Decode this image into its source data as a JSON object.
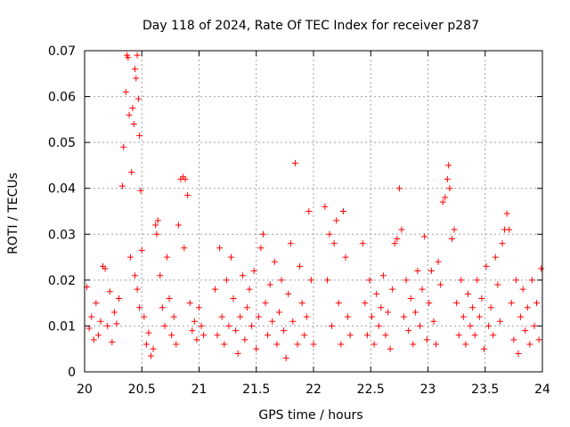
{
  "chart_data": {
    "type": "scatter",
    "title": "Day 118 of 2024, Rate Of TEC Index for receiver p287",
    "xlabel": "GPS time / hours",
    "ylabel": "ROTI / TECUs",
    "xlim": [
      20,
      24
    ],
    "ylim": [
      0,
      0.07
    ],
    "grid": true,
    "marker": "+",
    "color": "#ff0000",
    "x_ticks": [
      20,
      20.5,
      21,
      21.5,
      22,
      22.5,
      23,
      23.5,
      24
    ],
    "x_tick_labels": [
      "20",
      "20.5",
      "21",
      "21.5",
      "22",
      "22.5",
      "23",
      "23.5",
      "24"
    ],
    "y_ticks": [
      0,
      0.01,
      0.02,
      0.03,
      0.04,
      0.05,
      0.06,
      0.07
    ],
    "y_tick_labels": [
      "0",
      "0.01",
      "0.02",
      "0.03",
      "0.04",
      "0.05",
      "0.06",
      "0.07"
    ],
    "series": [
      {
        "name": "ROTI",
        "points": [
          [
            20.02,
            0.0185
          ],
          [
            20.04,
            0.0095
          ],
          [
            20.06,
            0.012
          ],
          [
            20.08,
            0.007
          ],
          [
            20.1,
            0.015
          ],
          [
            20.12,
            0.008
          ],
          [
            20.14,
            0.011
          ],
          [
            20.16,
            0.023
          ],
          [
            20.18,
            0.0225
          ],
          [
            20.2,
            0.01
          ],
          [
            20.22,
            0.0175
          ],
          [
            20.24,
            0.0065
          ],
          [
            20.26,
            0.013
          ],
          [
            20.28,
            0.0105
          ],
          [
            20.3,
            0.016
          ],
          [
            20.33,
            0.0405
          ],
          [
            20.34,
            0.049
          ],
          [
            20.36,
            0.061
          ],
          [
            20.37,
            0.069
          ],
          [
            20.38,
            0.0685
          ],
          [
            20.39,
            0.056
          ],
          [
            20.41,
            0.0435
          ],
          [
            20.42,
            0.0575
          ],
          [
            20.43,
            0.054
          ],
          [
            20.44,
            0.066
          ],
          [
            20.45,
            0.064
          ],
          [
            20.46,
            0.069
          ],
          [
            20.47,
            0.0595
          ],
          [
            20.48,
            0.0515
          ],
          [
            20.49,
            0.0395
          ],
          [
            20.4,
            0.025
          ],
          [
            20.44,
            0.021
          ],
          [
            20.46,
            0.018
          ],
          [
            20.48,
            0.014
          ],
          [
            20.5,
            0.0265
          ],
          [
            20.52,
            0.012
          ],
          [
            20.54,
            0.006
          ],
          [
            20.56,
            0.0085
          ],
          [
            20.58,
            0.0035
          ],
          [
            20.6,
            0.005
          ],
          [
            20.62,
            0.032
          ],
          [
            20.64,
            0.033
          ],
          [
            20.63,
            0.03
          ],
          [
            20.66,
            0.021
          ],
          [
            20.68,
            0.014
          ],
          [
            20.7,
            0.01
          ],
          [
            20.72,
            0.025
          ],
          [
            20.74,
            0.016
          ],
          [
            20.76,
            0.008
          ],
          [
            20.78,
            0.012
          ],
          [
            20.8,
            0.006
          ],
          [
            20.82,
            0.032
          ],
          [
            20.84,
            0.042
          ],
          [
            20.86,
            0.0425
          ],
          [
            20.88,
            0.042
          ],
          [
            20.9,
            0.0385
          ],
          [
            20.87,
            0.027
          ],
          [
            20.92,
            0.015
          ],
          [
            20.94,
            0.009
          ],
          [
            20.96,
            0.011
          ],
          [
            20.98,
            0.007
          ],
          [
            21.0,
            0.014
          ],
          [
            21.02,
            0.01
          ],
          [
            21.04,
            0.008
          ],
          [
            21.14,
            0.018
          ],
          [
            21.16,
            0.008
          ],
          [
            21.18,
            0.027
          ],
          [
            21.2,
            0.012
          ],
          [
            21.22,
            0.006
          ],
          [
            21.24,
            0.02
          ],
          [
            21.26,
            0.01
          ],
          [
            21.28,
            0.025
          ],
          [
            21.3,
            0.016
          ],
          [
            21.32,
            0.009
          ],
          [
            21.34,
            0.004
          ],
          [
            21.36,
            0.012
          ],
          [
            21.38,
            0.021
          ],
          [
            21.4,
            0.007
          ],
          [
            21.42,
            0.014
          ],
          [
            21.44,
            0.018
          ],
          [
            21.46,
            0.01
          ],
          [
            21.48,
            0.022
          ],
          [
            21.5,
            0.005
          ],
          [
            21.52,
            0.012
          ],
          [
            21.54,
            0.027
          ],
          [
            21.56,
            0.03
          ],
          [
            21.58,
            0.015
          ],
          [
            21.6,
            0.008
          ],
          [
            21.62,
            0.019
          ],
          [
            21.64,
            0.011
          ],
          [
            21.66,
            0.024
          ],
          [
            21.68,
            0.006
          ],
          [
            21.7,
            0.013
          ],
          [
            21.72,
            0.02
          ],
          [
            21.74,
            0.009
          ],
          [
            21.76,
            0.003
          ],
          [
            21.78,
            0.017
          ],
          [
            21.8,
            0.028
          ],
          [
            21.82,
            0.011
          ],
          [
            21.84,
            0.0455
          ],
          [
            21.86,
            0.006
          ],
          [
            21.88,
            0.023
          ],
          [
            21.9,
            0.015
          ],
          [
            21.92,
            0.008
          ],
          [
            21.94,
            0.012
          ],
          [
            21.96,
            0.035
          ],
          [
            21.98,
            0.02
          ],
          [
            22.0,
            0.006
          ],
          [
            22.1,
            0.036
          ],
          [
            22.12,
            0.02
          ],
          [
            22.14,
            0.03
          ],
          [
            22.16,
            0.01
          ],
          [
            22.18,
            0.028
          ],
          [
            22.2,
            0.033
          ],
          [
            22.22,
            0.015
          ],
          [
            22.24,
            0.006
          ],
          [
            22.26,
            0.035
          ],
          [
            22.28,
            0.025
          ],
          [
            22.3,
            0.012
          ],
          [
            22.32,
            0.008
          ],
          [
            22.43,
            0.028
          ],
          [
            22.45,
            0.015
          ],
          [
            22.47,
            0.008
          ],
          [
            22.49,
            0.02
          ],
          [
            22.51,
            0.012
          ],
          [
            22.53,
            0.006
          ],
          [
            22.55,
            0.017
          ],
          [
            22.57,
            0.01
          ],
          [
            22.59,
            0.014
          ],
          [
            22.61,
            0.021
          ],
          [
            22.63,
            0.008
          ],
          [
            22.65,
            0.013
          ],
          [
            22.67,
            0.005
          ],
          [
            22.69,
            0.018
          ],
          [
            22.71,
            0.028
          ],
          [
            22.73,
            0.029
          ],
          [
            22.75,
            0.04
          ],
          [
            22.77,
            0.031
          ],
          [
            22.79,
            0.012
          ],
          [
            22.81,
            0.02
          ],
          [
            22.83,
            0.009
          ],
          [
            22.85,
            0.016
          ],
          [
            22.87,
            0.006
          ],
          [
            22.89,
            0.013
          ],
          [
            22.91,
            0.022
          ],
          [
            22.93,
            0.01
          ],
          [
            22.95,
            0.018
          ],
          [
            22.97,
            0.0295
          ],
          [
            22.99,
            0.007
          ],
          [
            23.01,
            0.015
          ],
          [
            23.03,
            0.022
          ],
          [
            23.05,
            0.011
          ],
          [
            23.07,
            0.006
          ],
          [
            23.09,
            0.024
          ],
          [
            23.11,
            0.019
          ],
          [
            23.13,
            0.037
          ],
          [
            23.15,
            0.038
          ],
          [
            23.17,
            0.042
          ],
          [
            23.18,
            0.045
          ],
          [
            23.19,
            0.04
          ],
          [
            23.21,
            0.029
          ],
          [
            23.23,
            0.031
          ],
          [
            23.25,
            0.015
          ],
          [
            23.27,
            0.008
          ],
          [
            23.29,
            0.02
          ],
          [
            23.31,
            0.012
          ],
          [
            23.33,
            0.006
          ],
          [
            23.35,
            0.017
          ],
          [
            23.37,
            0.01
          ],
          [
            23.39,
            0.014
          ],
          [
            23.41,
            0.008
          ],
          [
            23.43,
            0.02
          ],
          [
            23.45,
            0.012
          ],
          [
            23.47,
            0.016
          ],
          [
            23.49,
            0.005
          ],
          [
            23.51,
            0.023
          ],
          [
            23.53,
            0.01
          ],
          [
            23.55,
            0.014
          ],
          [
            23.57,
            0.008
          ],
          [
            23.59,
            0.025
          ],
          [
            23.61,
            0.019
          ],
          [
            23.63,
            0.011
          ],
          [
            23.65,
            0.028
          ],
          [
            23.67,
            0.031
          ],
          [
            23.69,
            0.0345
          ],
          [
            23.71,
            0.031
          ],
          [
            23.73,
            0.015
          ],
          [
            23.75,
            0.007
          ],
          [
            23.77,
            0.02
          ],
          [
            23.79,
            0.004
          ],
          [
            23.81,
            0.012
          ],
          [
            23.83,
            0.018
          ],
          [
            23.85,
            0.009
          ],
          [
            23.87,
            0.014
          ],
          [
            23.89,
            0.006
          ],
          [
            23.91,
            0.02
          ],
          [
            23.93,
            0.01
          ],
          [
            23.95,
            0.015
          ],
          [
            23.97,
            0.007
          ],
          [
            23.99,
            0.0225
          ]
        ]
      }
    ]
  }
}
